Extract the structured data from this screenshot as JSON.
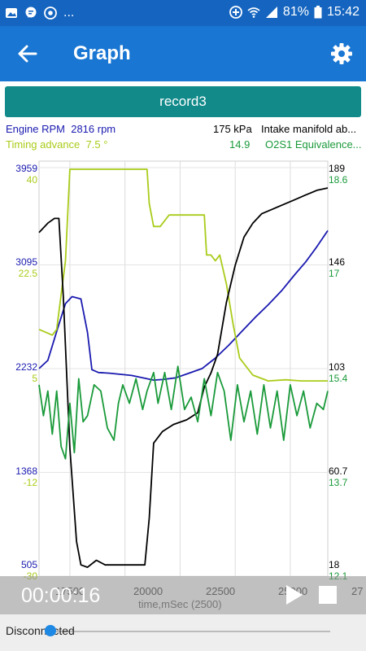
{
  "status_bar": {
    "dots": "...",
    "battery": "81%",
    "time": "15:42"
  },
  "app_bar": {
    "title": "Graph"
  },
  "record": {
    "label": "record3"
  },
  "legend": {
    "left": [
      {
        "name": "Engine RPM",
        "value": "2816 rpm",
        "color": "#1a1ab0"
      },
      {
        "name": "Timing advance",
        "value": "7.5 °",
        "color": "#a9cc1a"
      }
    ],
    "right": [
      {
        "value": "175 kPa",
        "name": "Intake manifold ab...",
        "color": "#000000"
      },
      {
        "value": "14.9",
        "name": "O2S1 Equivalence...",
        "color": "#1a9a3a"
      }
    ]
  },
  "axes": {
    "left_rpm": [
      "3959",
      "3095",
      "2232",
      "1368",
      "505"
    ],
    "left_timing": [
      "40",
      "22.5",
      "5",
      "-12",
      "-30"
    ],
    "right_map": [
      "189",
      "146",
      "103",
      "60.7",
      "18"
    ],
    "right_o2": [
      "18.6",
      "17",
      "15.4",
      "13.7",
      "12.1"
    ],
    "x_ticks": [
      "17500",
      "20000",
      "22500",
      "25000",
      "27"
    ],
    "x_label": "time,mSec (2500)"
  },
  "chart_data": {
    "type": "line",
    "x_unit": "mSec",
    "xlim": [
      16100,
      29200
    ],
    "series": [
      {
        "name": "Engine RPM",
        "color": "#1a1ab0",
        "ylim": [
          505,
          3959
        ],
        "points": [
          [
            16100,
            2240
          ],
          [
            16500,
            2310
          ],
          [
            16900,
            2560
          ],
          [
            17300,
            2800
          ],
          [
            17600,
            2860
          ],
          [
            18000,
            2840
          ],
          [
            18300,
            2550
          ],
          [
            18500,
            2230
          ],
          [
            18800,
            2205
          ],
          [
            19300,
            2200
          ],
          [
            19800,
            2190
          ],
          [
            20300,
            2180
          ],
          [
            20800,
            2160
          ],
          [
            21300,
            2140
          ],
          [
            21700,
            2145
          ],
          [
            22300,
            2160
          ],
          [
            22900,
            2200
          ],
          [
            23500,
            2240
          ],
          [
            24100,
            2330
          ],
          [
            24700,
            2440
          ],
          [
            25300,
            2560
          ],
          [
            25900,
            2680
          ],
          [
            26500,
            2790
          ],
          [
            27100,
            2910
          ],
          [
            27700,
            3050
          ],
          [
            28200,
            3160
          ],
          [
            28700,
            3290
          ],
          [
            29200,
            3430
          ]
        ]
      },
      {
        "name": "Timing advance",
        "color": "#a9cc1a",
        "ylim": [
          -30,
          40
        ],
        "points": [
          [
            16100,
            12
          ],
          [
            16700,
            11
          ],
          [
            16900,
            12
          ],
          [
            17000,
            15
          ],
          [
            17300,
            24
          ],
          [
            17500,
            40
          ],
          [
            18100,
            40
          ],
          [
            18400,
            40
          ],
          [
            19000,
            40
          ],
          [
            20500,
            40
          ],
          [
            20900,
            40
          ],
          [
            21000,
            40
          ],
          [
            21100,
            34
          ],
          [
            21300,
            30
          ],
          [
            21600,
            30
          ],
          [
            22000,
            32
          ],
          [
            22500,
            32
          ],
          [
            23200,
            32
          ],
          [
            23600,
            32
          ],
          [
            23700,
            25
          ],
          [
            23900,
            25
          ],
          [
            24100,
            24
          ],
          [
            24300,
            25
          ],
          [
            24600,
            20
          ],
          [
            24900,
            13
          ],
          [
            25200,
            7
          ],
          [
            25800,
            4
          ],
          [
            26500,
            3
          ],
          [
            27300,
            3.2
          ],
          [
            28000,
            3
          ],
          [
            29200,
            3
          ]
        ]
      },
      {
        "name": "Intake manifold ab...",
        "color": "#000000",
        "ylim": [
          18,
          189
        ],
        "points": [
          [
            16100,
            162
          ],
          [
            16500,
            166
          ],
          [
            16800,
            168
          ],
          [
            17000,
            168
          ],
          [
            17200,
            135
          ],
          [
            17500,
            70
          ],
          [
            17800,
            30
          ],
          [
            18000,
            20
          ],
          [
            18300,
            19
          ],
          [
            18700,
            22
          ],
          [
            19100,
            20
          ],
          [
            19800,
            20
          ],
          [
            20500,
            20
          ],
          [
            20900,
            20
          ],
          [
            21100,
            40
          ],
          [
            21300,
            72
          ],
          [
            21700,
            77
          ],
          [
            22200,
            80
          ],
          [
            22800,
            82
          ],
          [
            23300,
            85
          ],
          [
            23600,
            96
          ],
          [
            23900,
            102
          ],
          [
            24200,
            110
          ],
          [
            24600,
            132
          ],
          [
            25000,
            148
          ],
          [
            25400,
            160
          ],
          [
            25800,
            166
          ],
          [
            26200,
            170
          ],
          [
            26700,
            172
          ],
          [
            27200,
            174
          ],
          [
            27700,
            176
          ],
          [
            28200,
            178
          ],
          [
            28700,
            180
          ],
          [
            29200,
            181
          ]
        ]
      },
      {
        "name": "O2S1 Equivalence...",
        "color": "#1a9a3a",
        "ylim": [
          12.1,
          18.6
        ],
        "points": [
          [
            16100,
            15.1
          ],
          [
            16300,
            14.6
          ],
          [
            16500,
            15.0
          ],
          [
            16700,
            14.3
          ],
          [
            16900,
            15.0
          ],
          [
            17100,
            14.1
          ],
          [
            17300,
            13.9
          ],
          [
            17500,
            14.8
          ],
          [
            17700,
            14.0
          ],
          [
            17900,
            15.2
          ],
          [
            18100,
            14.5
          ],
          [
            18300,
            14.6
          ],
          [
            18600,
            15.1
          ],
          [
            18900,
            15.0
          ],
          [
            19200,
            14.4
          ],
          [
            19500,
            14.2
          ],
          [
            19700,
            14.8
          ],
          [
            19900,
            15.1
          ],
          [
            20200,
            14.8
          ],
          [
            20500,
            15.2
          ],
          [
            20800,
            14.7
          ],
          [
            21000,
            15.0
          ],
          [
            21300,
            15.3
          ],
          [
            21500,
            14.8
          ],
          [
            21800,
            15.3
          ],
          [
            22100,
            14.7
          ],
          [
            22400,
            15.4
          ],
          [
            22700,
            14.7
          ],
          [
            23000,
            14.9
          ],
          [
            23300,
            14.5
          ],
          [
            23600,
            15.2
          ],
          [
            23900,
            14.6
          ],
          [
            24200,
            15.3
          ],
          [
            24500,
            15.0
          ],
          [
            24800,
            14.2
          ],
          [
            25100,
            15.1
          ],
          [
            25400,
            14.5
          ],
          [
            25700,
            15.0
          ],
          [
            26000,
            14.3
          ],
          [
            26300,
            15.1
          ],
          [
            26600,
            14.4
          ],
          [
            26900,
            15.0
          ],
          [
            27200,
            14.2
          ],
          [
            27500,
            15.1
          ],
          [
            27800,
            14.6
          ],
          [
            28100,
            15.0
          ],
          [
            28400,
            14.4
          ],
          [
            28700,
            14.8
          ],
          [
            29000,
            14.7
          ],
          [
            29200,
            15.0
          ]
        ]
      }
    ]
  },
  "player": {
    "time": "00:00:16",
    "status": "Disconnected"
  },
  "colors": {
    "primary": "#1976d2",
    "status_bar": "#1565c0",
    "record_button": "#128a8a"
  }
}
